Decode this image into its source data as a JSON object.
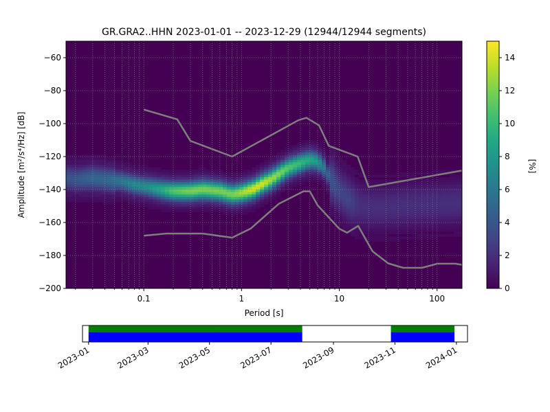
{
  "chart_data": {
    "type": "heatmap",
    "title": "GR.GRA2..HHN   2023-01-01 -- 2023-12-29  (12944/12944 segments)",
    "xlabel": "Period [s]",
    "ylabel": "Amplitude [m²/s⁴/Hz] [dB]",
    "x_scale": "log",
    "xlim": [
      0.016,
      180
    ],
    "ylim": [
      -200,
      -50
    ],
    "x_ticks": [
      0.1,
      1,
      10,
      100
    ],
    "x_tick_labels": [
      "0.1",
      "1",
      "10",
      "100"
    ],
    "y_ticks": [
      -200,
      -180,
      -160,
      -140,
      -120,
      -100,
      -80,
      -60
    ],
    "y_tick_labels": [
      "−200",
      "−180",
      "−160",
      "−140",
      "−120",
      "−100",
      "−80",
      "−60"
    ],
    "grid": true,
    "colormap": "viridis",
    "colorbar": {
      "label": "[%]",
      "range": [
        0,
        15
      ],
      "ticks": [
        0,
        2,
        4,
        6,
        8,
        10,
        12,
        14
      ],
      "tick_labels": [
        "0",
        "2",
        "4",
        "6",
        "8",
        "10",
        "12",
        "14"
      ]
    },
    "psd_mode": {
      "period": [
        0.016,
        0.02,
        0.03,
        0.04,
        0.06,
        0.08,
        0.1,
        0.15,
        0.2,
        0.3,
        0.4,
        0.6,
        0.8,
        1.0,
        1.3,
        1.6,
        2.0,
        2.5,
        3.0,
        4.0,
        5.0,
        6.0,
        7.0,
        8.0,
        10,
        13,
        16,
        20,
        30,
        50,
        100,
        180
      ],
      "amplitude_db": [
        -133,
        -134,
        -133,
        -134,
        -135,
        -137,
        -138,
        -140,
        -141,
        -141,
        -140,
        -141,
        -143,
        -142,
        -140,
        -137,
        -134,
        -130,
        -127,
        -124,
        -122,
        -123,
        -127,
        -133,
        -141,
        -147,
        -150,
        -151,
        -151,
        -150,
        -149,
        -148
      ],
      "peak_percent": [
        4,
        4,
        5,
        5,
        6,
        7,
        7,
        9,
        11,
        12,
        12,
        12,
        12,
        13,
        14,
        14,
        13,
        12,
        11,
        10,
        9,
        8,
        6,
        4,
        3,
        3,
        2,
        2,
        2,
        2,
        2,
        2
      ]
    },
    "reference_curves": [
      {
        "period": [
          0.1,
          0.22,
          0.3,
          0.8,
          3.8,
          4.6,
          6.2,
          7.8,
          15.4,
          20,
          180
        ],
        "amplitude_db": [
          -91.5,
          -97.4,
          -110.5,
          -120,
          -98,
          -96.5,
          -101,
          -113.5,
          -120,
          -138.5,
          -128.5
        ]
      },
      {
        "period": [
          0.1,
          0.17,
          0.4,
          0.8,
          1.24,
          2.4,
          4.3,
          5.0,
          6.0,
          10,
          12,
          15.6,
          21.9,
          31.6,
          45,
          70,
          101,
          154,
          180
        ],
        "amplitude_db": [
          -168,
          -166.7,
          -166.7,
          -169.2,
          -163.7,
          -148.7,
          -141.1,
          -141.1,
          -149.6,
          -163.8,
          -166.2,
          -162.1,
          -177.5,
          -184.8,
          -187.5,
          -187.5,
          -185,
          -185,
          -185.7
        ]
      }
    ],
    "timeline": {
      "date_ticks": [
        "2023-01",
        "2023-03",
        "2023-05",
        "2023-07",
        "2023-09",
        "2023-11",
        "2024-01"
      ],
      "data_coverage": [
        {
          "start": "2023-01-01",
          "end": "2023-05-06"
        },
        {
          "start": "2023-05-07",
          "end": "2023-07-31"
        },
        {
          "start": "2023-10-28",
          "end": "2023-12-29"
        }
      ]
    }
  }
}
